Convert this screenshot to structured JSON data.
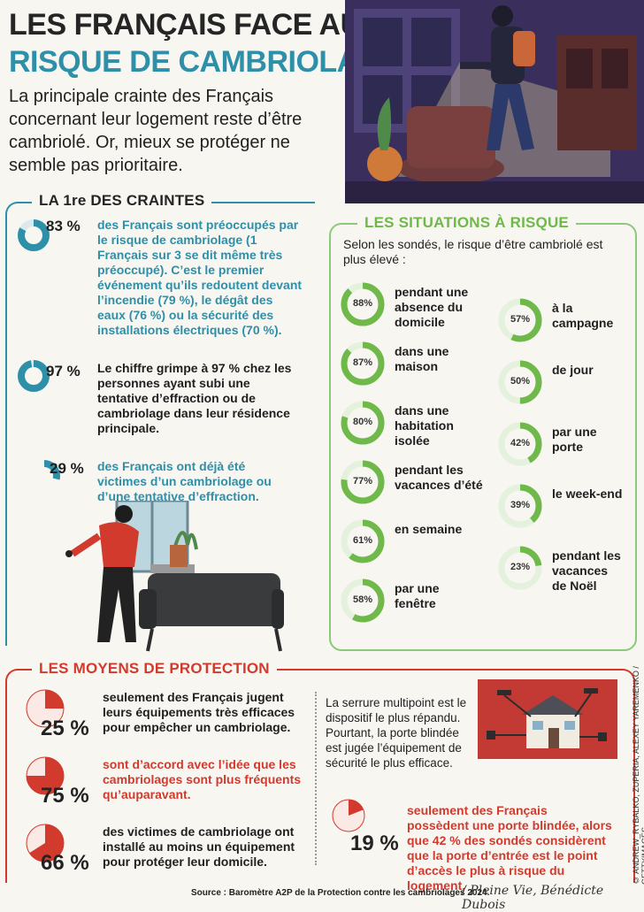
{
  "header": {
    "title_line1": "LES FRANÇAIS FACE AU",
    "title_line2": "RISQUE DE CAMBRIOLAGE",
    "intro": "La principale crainte des Français concernant leur logement reste d’être cambriolé. Or, mieux se protéger ne semble pas prioritaire."
  },
  "colors": {
    "blue": "#2e8fa9",
    "green": "#6fb84a",
    "red": "#d23a2e",
    "dark": "#252525"
  },
  "craintes": {
    "title": "LA 1re DES CRAINTES",
    "items": [
      {
        "value": 83,
        "pct": "83 %",
        "text": "des Français sont préoccupés par le risque de cambriolage (1 Français sur 3 se dit même très préoccupé). C’est le premier événement qu’ils redoutent devant l’incendie (79 %), le dégât des eaux (76 %) ou la sécurité des installations électriques (70 %)."
      },
      {
        "value": 97,
        "pct": "97 %",
        "text": "Le chiffre grimpe à 97 % chez les personnes ayant subi une tentative d’effraction ou de cambriolage dans leur résidence principale."
      },
      {
        "value": 29,
        "pct": "29 %",
        "text": "des Français ont déjà été victimes d’un cambriolage ou d’une tentative d’effraction."
      }
    ]
  },
  "situations": {
    "title": "LES SITUATIONS À RISQUE",
    "intro": "Selon les sondés, le risque d’être cambriolé est plus élevé :",
    "left": [
      {
        "value": 88,
        "label": "88%",
        "text": "pendant une absence du domicile"
      },
      {
        "value": 87,
        "label": "87%",
        "text": "dans une maison"
      },
      {
        "value": 80,
        "label": "80%",
        "text": "dans une habitation isolée"
      },
      {
        "value": 77,
        "label": "77%",
        "text": "pendant les vacances d’été"
      },
      {
        "value": 61,
        "label": "61%",
        "text": "en semaine"
      },
      {
        "value": 58,
        "label": "58%",
        "text": "par une fenêtre"
      }
    ],
    "right": [
      {
        "value": 57,
        "label": "57%",
        "text": "à la campagne"
      },
      {
        "value": 50,
        "label": "50%",
        "text": "de jour"
      },
      {
        "value": 42,
        "label": "42%",
        "text": "par une porte"
      },
      {
        "value": 39,
        "label": "39%",
        "text": "le week-end"
      },
      {
        "value": 23,
        "label": "23%",
        "text": "pendant les vacances de Noël"
      }
    ]
  },
  "protection": {
    "title": "LES MOYENS DE PROTECTION",
    "items": [
      {
        "value": 25,
        "pct": "25 %",
        "text": "seulement des Français jugent leurs équipements très efficaces pour empêcher un cambriolage."
      },
      {
        "value": 75,
        "pct": "75 %",
        "text": "sont d’accord avec l’idée que les cambriolages sont plus fréquents qu’auparavant."
      },
      {
        "value": 66,
        "pct": "66 %",
        "text": "des victimes de cambriolage ont installé au moins un équipement pour protéger leur domicile."
      }
    ],
    "serrure_text": "La serrure multipoint est le dispositif le plus répandu. Pourtant, la porte blindée est jugée l’équipement de sécurité le plus efficace.",
    "blindee": {
      "value": 19,
      "pct": "19 %",
      "text": "seulement des Français possèdent une porte blindée, alors que 42 % des sondés considèrent que la porte d’entrée est le point d’accès le plus à risque du logement."
    }
  },
  "footer": {
    "source": "Source : Baromètre A2P de la Protection contre les cambriolages 2024.",
    "signature": "/ Pleine Vie, Bénédicte Dubois",
    "credit": "© ANDREW_RYBALKO, ZUPERIA, ALEXEY YAREMENKO / GETTYIMAGES"
  }
}
